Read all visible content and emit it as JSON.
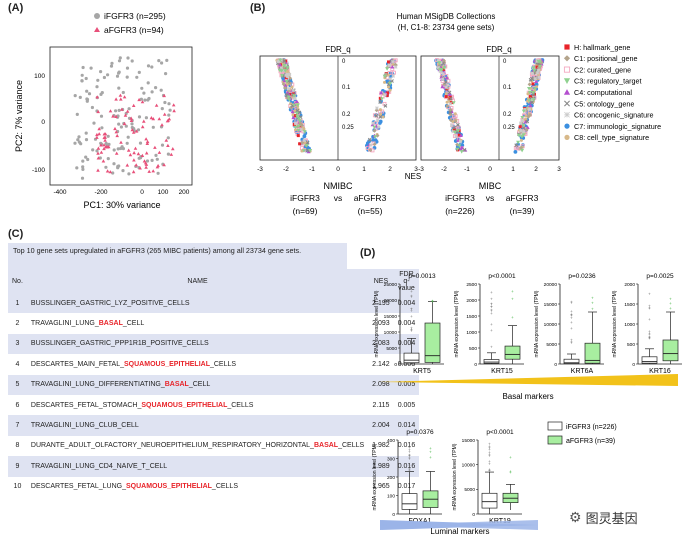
{
  "panels": {
    "a": "(A)",
    "b": "(B)",
    "c": "(C)",
    "d": "(D)"
  },
  "panel_a": {
    "legend": [
      "iFGFR3 (n=295)",
      "aFGFR3 (n=94)"
    ],
    "xlabel": "PC1: 30% variance",
    "ylabel": "PC2: 7% variance",
    "xticks": [
      "-400",
      "-200",
      "0",
      "100",
      "200"
    ],
    "yticks": [
      "100",
      "0",
      "-100"
    ],
    "colors": {
      "ifgfr3": "#a6a6a6",
      "afgfr3": "#e8507a"
    }
  },
  "panel_b": {
    "title_line1": "Human MSigDB Collections",
    "title_line2": "(H, C1-8: 23734 gene sets)",
    "fdr_label": "FDR_q",
    "nes_label": "NES",
    "fdr_ticks": [
      "0",
      "0.1",
      "0.2",
      "0.25",
      "0.25"
    ],
    "x_ticks": [
      "-3",
      "-2",
      "-1",
      "0",
      "1",
      "2",
      "3"
    ],
    "left_group": "NMIBC",
    "right_group": "MIBC",
    "left_cmp": [
      "iFGFR3",
      "vs",
      "aFGFR3"
    ],
    "left_n": [
      "(n=69)",
      "(n=55)"
    ],
    "right_cmp": [
      "iFGFR3",
      "vs",
      "aFGFR3"
    ],
    "right_n": [
      "(n=226)",
      "(n=39)"
    ],
    "legend": [
      {
        "label": "H: hallmark_gene",
        "color": "#e8242a",
        "shape": "square"
      },
      {
        "label": "C1: positional_gene",
        "color": "#b4a48c",
        "shape": "diamond"
      },
      {
        "label": "C2: curated_gene",
        "color": "#f4a9c1",
        "shape": "square-open"
      },
      {
        "label": "C3: regulatory_target",
        "color": "#8fd18f",
        "shape": "triangle-down"
      },
      {
        "label": "C4: computational",
        "color": "#b44fcf",
        "shape": "triangle"
      },
      {
        "label": "C5: ontology_gene",
        "color": "#888888",
        "shape": "cross"
      },
      {
        "label": "C6: oncogenic_signature",
        "color": "#cccccc",
        "shape": "star"
      },
      {
        "label": "C7: immunologic_signature",
        "color": "#3b8fe0",
        "shape": "circle"
      },
      {
        "label": "C8: cell_type_signature",
        "color": "#d8b98a",
        "shape": "circle"
      }
    ]
  },
  "panel_c": {
    "title": "Top 10 gene sets upregulated in aFGFR3 (265 MIBC patients) among all 23734 gene sets.",
    "headers": {
      "no": "No.",
      "name": "NAME",
      "nes": "NES",
      "fdr1": "FDR",
      "fdr2": "q-value"
    },
    "rows": [
      {
        "no": "1",
        "name": [
          "BUSSLINGER_GASTRIC_LYZ_POSITIVE_CELLS"
        ],
        "nes": "2.195",
        "fdr": "0.004"
      },
      {
        "no": "2",
        "name": [
          "TRAVAGLINI_LUNG_",
          "BASAL",
          "_CELL"
        ],
        "nes": "2.093",
        "fdr": "0.004"
      },
      {
        "no": "3",
        "name": [
          "BUSSLINGER_GASTRIC_PPP1R1B_POSITIVE_CELLS"
        ],
        "nes": "2.083",
        "fdr": "0.004"
      },
      {
        "no": "4",
        "name": [
          "DESCARTES_MAIN_FETAL_",
          "SQUAMOUS_EPITHELIAL",
          "_CELLS"
        ],
        "nes": "2.142",
        "fdr": "0.005"
      },
      {
        "no": "5",
        "name": [
          "TRAVAGLINI_LUNG_DIFFERENTIATING_",
          "BASAL",
          "_CELL"
        ],
        "nes": "2.098",
        "fdr": "0.005"
      },
      {
        "no": "6",
        "name": [
          "DESCARTES_FETAL_STOMACH_",
          "SQUAMOUS_EPITHELIAL",
          "_CELLS"
        ],
        "nes": "2.115",
        "fdr": "0.005"
      },
      {
        "no": "7",
        "name": [
          "TRAVAGLINI_LUNG_CLUB_CELL"
        ],
        "nes": "2.004",
        "fdr": "0.014"
      },
      {
        "no": "8",
        "name": [
          "DURANTE_ADULT_OLFACTORY_NEUROEPITHELIUM_RESPIRATORY_HORIZONTAL_",
          "BASAL",
          "_CELLS"
        ],
        "nes": "1.982",
        "fdr": "0.016"
      },
      {
        "no": "9",
        "name": [
          "TRAVAGLINI_LUNG_CD4_NAIVE_T_CELL"
        ],
        "nes": "1.989",
        "fdr": "0.016"
      },
      {
        "no": "10",
        "name": [
          "DESCARTES_FETAL_LUNG_",
          "SQUAMOUS_EPITHELIAL",
          "_CELLS"
        ],
        "nes": "1.965",
        "fdr": "0.017"
      }
    ]
  },
  "panel_d": {
    "ylabel": "mRNA expression level (TPM)",
    "legend": [
      "iFGFR3 (n=226)",
      "aFGFR3 (n=39)"
    ],
    "basal_label": "Basal markers",
    "luminal_label": "Luminal markers",
    "genes": [
      {
        "name": "KRT5",
        "p": "p=0.0013",
        "yticks": [
          "25000",
          "20000",
          "15000",
          "10000",
          "5000",
          "0"
        ],
        "ymax": 25000,
        "i": {
          "q1": 400,
          "med": 1200,
          "q3": 3400,
          "lo": 0,
          "hi": 8000
        },
        "a": {
          "q1": 500,
          "med": 2600,
          "q3": 12800,
          "lo": 0,
          "hi": 19500
        }
      },
      {
        "name": "KRT15",
        "p": "p<0.0001",
        "yticks": [
          "2500",
          "2000",
          "1500",
          "1000",
          "500",
          "0"
        ],
        "ymax": 2500,
        "i": {
          "q1": 20,
          "med": 60,
          "q3": 140,
          "lo": 0,
          "hi": 350
        },
        "a": {
          "q1": 150,
          "med": 300,
          "q3": 560,
          "lo": 0,
          "hi": 1200
        }
      },
      {
        "name": "KRT6A",
        "p": "p=0.0236",
        "yticks": [
          "20000",
          "15000",
          "10000",
          "5000",
          "0"
        ],
        "ymax": 20000,
        "i": {
          "q1": 100,
          "med": 300,
          "q3": 1200,
          "lo": 0,
          "hi": 2500
        },
        "a": {
          "q1": 200,
          "med": 900,
          "q3": 5200,
          "lo": 0,
          "hi": 13000
        }
      },
      {
        "name": "KRT16",
        "p": "p=0.0025",
        "yticks": [
          "2000",
          "1500",
          "1000",
          "500",
          "0"
        ],
        "ymax": 2000,
        "i": {
          "q1": 20,
          "med": 60,
          "q3": 180,
          "lo": 0,
          "hi": 380
        },
        "a": {
          "q1": 80,
          "med": 260,
          "q3": 600,
          "lo": 0,
          "hi": 1300
        }
      },
      {
        "name": "FOXA1",
        "p": "p=0.0376",
        "yticks": [
          "400",
          "300",
          "200",
          "100",
          "0"
        ],
        "ymax": 400,
        "i": {
          "q1": 25,
          "med": 55,
          "q3": 110,
          "lo": 0,
          "hi": 230
        },
        "a": {
          "q1": 35,
          "med": 80,
          "q3": 125,
          "lo": 0,
          "hi": 230
        }
      },
      {
        "name": "KRT19",
        "p": "p<0.0001",
        "yticks": [
          "15000",
          "10000",
          "5000",
          "0"
        ],
        "ymax": 15000,
        "i": {
          "q1": 1200,
          "med": 2500,
          "q3": 4200,
          "lo": 0,
          "hi": 8500
        },
        "a": {
          "q1": 2300,
          "med": 3200,
          "q3": 4200,
          "lo": 800,
          "hi": 6000
        }
      }
    ],
    "colors": {
      "ifgfr3": "#ffffff",
      "afgfr3": "#a8eea0",
      "basal": "#f2c21a",
      "luminal": "#9bb4e8"
    }
  },
  "watermark": "图灵基因"
}
